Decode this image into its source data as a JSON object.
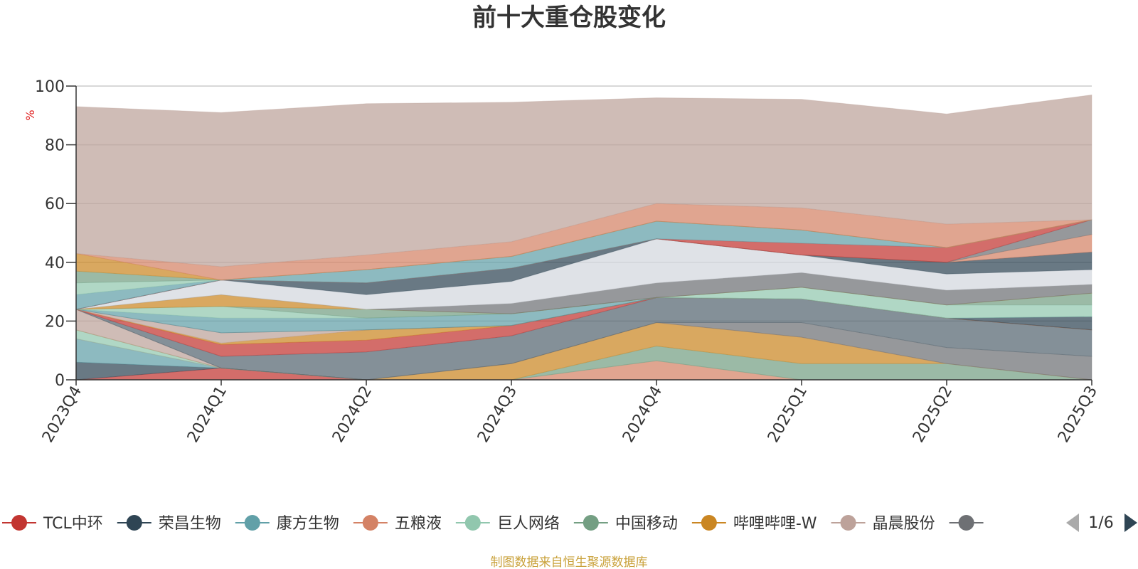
{
  "chart_data": {
    "type": "area",
    "title": "前十大重仓股变化",
    "ylabel": "%",
    "ylim": [
      0,
      100
    ],
    "yticks": [
      "0",
      "20",
      "40",
      "60",
      "80",
      "100"
    ],
    "grid": true,
    "categories": [
      "2023Q4",
      "2024Q1",
      "2024Q2",
      "2024Q3",
      "2024Q4",
      "2025Q1",
      "2025Q2",
      "2025Q3"
    ],
    "series": [
      {
        "name": "TCL中环",
        "color": "#c23531",
        "values": [
          0,
          4,
          0,
          0,
          0,
          0,
          0,
          0
        ]
      },
      {
        "name": "荣昌生物",
        "color": "#2f4554",
        "values": [
          6,
          0,
          0,
          0,
          0,
          0,
          0,
          0
        ]
      },
      {
        "name": "康方生物",
        "color": "#61a0a8",
        "values": [
          8,
          0,
          0,
          0,
          0,
          0,
          0,
          0
        ]
      },
      {
        "name": "五粮液",
        "color": "#d48265",
        "values": [
          0,
          0,
          0,
          0,
          6.5,
          0,
          0,
          0
        ]
      },
      {
        "name": "巨人网络",
        "color": "#91c7ae",
        "values": [
          3,
          0,
          0,
          0,
          0,
          0,
          0,
          0
        ]
      },
      {
        "name": "中国移动",
        "color": "#749f83",
        "values": [
          0,
          0,
          0,
          0,
          5,
          5.5,
          5.5,
          0
        ]
      },
      {
        "name": "哔哩哔哩-W",
        "color": "#ca8622",
        "values": [
          0,
          0,
          0,
          5.5,
          8,
          9,
          0,
          0
        ]
      },
      {
        "name": "晶晨股份",
        "color": "#bda29a",
        "values": [
          7,
          0,
          0,
          0,
          0,
          0,
          0,
          0
        ]
      },
      {
        "name": "",
        "color": "#6e7074",
        "values": [
          0,
          0,
          0,
          0,
          0,
          5,
          5.5,
          8
        ]
      },
      {
        "name": "",
        "color": "#546570",
        "values": [
          0,
          4,
          9.5,
          9.5,
          8.5,
          8,
          10,
          9
        ]
      },
      {
        "name": "",
        "color": "#c23531",
        "values": [
          0,
          4,
          4,
          3.5,
          0,
          0,
          0,
          0
        ]
      },
      {
        "name": "",
        "color": "#ca8622",
        "values": [
          0,
          0.5,
          3.5,
          0,
          0,
          0,
          0,
          0
        ]
      },
      {
        "name": "",
        "color": "#bda29a",
        "values": [
          0,
          3.5,
          0,
          0,
          0,
          0,
          0,
          0
        ]
      },
      {
        "name": "",
        "color": "#2f4554",
        "values": [
          0,
          0,
          0,
          0,
          0,
          0,
          0,
          4.5
        ]
      },
      {
        "name": "",
        "color": "#61a0a8",
        "values": [
          0,
          5,
          4,
          4,
          0,
          0,
          0,
          0
        ]
      },
      {
        "name": "",
        "color": "#91c7ae",
        "values": [
          0,
          4,
          0,
          0,
          0,
          4,
          4.5,
          4
        ]
      },
      {
        "name": "",
        "color": "#749f83",
        "values": [
          0,
          0,
          3,
          0,
          0,
          0,
          0,
          4
        ]
      },
      {
        "name": "",
        "color": "#ca8622",
        "values": [
          0,
          4,
          0,
          0,
          0,
          0,
          0,
          0
        ]
      },
      {
        "name": "",
        "color": "#6e7074",
        "values": [
          0,
          0,
          0,
          3.5,
          5,
          5,
          5,
          3
        ]
      },
      {
        "name": "",
        "color": "#d3d7de",
        "values": [
          0,
          5,
          5,
          7.5,
          15,
          6,
          5.5,
          5
        ]
      },
      {
        "name": "",
        "color": "#2f4554",
        "values": [
          0,
          0,
          4,
          4.5,
          0,
          0,
          4,
          6
        ]
      },
      {
        "name": "",
        "color": "#d48265",
        "values": [
          0,
          0,
          0,
          0,
          0,
          0,
          0,
          6
        ]
      },
      {
        "name": "",
        "color": "#6e7074",
        "values": [
          0,
          0,
          0,
          0,
          0,
          0,
          0,
          5
        ]
      },
      {
        "name": "",
        "color": "#c23531",
        "values": [
          0,
          0,
          0,
          0,
          0,
          4,
          5,
          0
        ]
      },
      {
        "name": "",
        "color": "#61a0a8",
        "values": [
          5,
          0,
          4.5,
          4,
          6,
          4.5,
          0,
          0
        ]
      },
      {
        "name": "",
        "color": "#91c7ae",
        "values": [
          4,
          0,
          0,
          0,
          0,
          0,
          0,
          0
        ]
      },
      {
        "name": "",
        "color": "#749f83",
        "values": [
          4,
          0,
          0,
          0,
          0,
          0,
          0,
          0
        ]
      },
      {
        "name": "",
        "color": "#ca8622",
        "values": [
          6,
          0,
          0,
          0,
          0,
          0,
          0,
          0
        ]
      },
      {
        "name": "",
        "color": "#d48265",
        "values": [
          0,
          4.5,
          5,
          5,
          6,
          7.5,
          8,
          0
        ]
      },
      {
        "name": "",
        "color": "#bda29a",
        "values": [
          50,
          52.5,
          51.5,
          47.5,
          36,
          37,
          37.5,
          42.5
        ]
      }
    ]
  },
  "legend": {
    "items": [
      {
        "label": "TCL中环",
        "color": "#c23531"
      },
      {
        "label": "荣昌生物",
        "color": "#2f4554"
      },
      {
        "label": "康方生物",
        "color": "#61a0a8"
      },
      {
        "label": "五粮液",
        "color": "#d48265"
      },
      {
        "label": "巨人网络",
        "color": "#91c7ae"
      },
      {
        "label": "中国移动",
        "color": "#749f83"
      },
      {
        "label": "哔哩哔哩-W",
        "color": "#ca8622"
      },
      {
        "label": "晶晨股份",
        "color": "#bda29a"
      },
      {
        "label": "",
        "color": "#6e7074"
      }
    ],
    "page": "1/6"
  },
  "source": "制图数据来自恒生聚源数据库"
}
